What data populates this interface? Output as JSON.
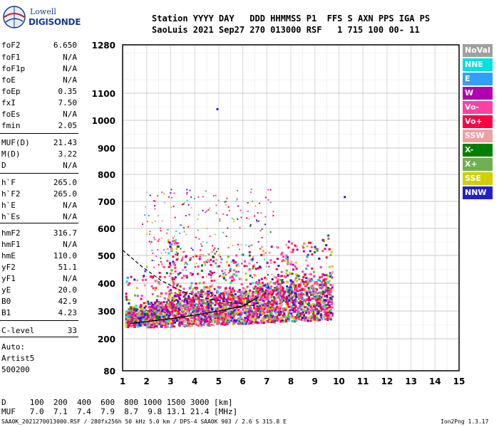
{
  "logo": {
    "brand_top": "Lowell",
    "brand_bottom": "DIGISONDE"
  },
  "header": {
    "labels": "Station YYYY DAY   DDD HHMMSS P1  FFS S AXN PPS IGA PS",
    "values": "SaoLuis 2021 Sep27 270 013000 RSF   1 715 100 00- 11"
  },
  "params": [
    {
      "name": "foF2",
      "value": "6.650"
    },
    {
      "name": "foF1",
      "value": "N/A"
    },
    {
      "name": "foF1p",
      "value": "N/A"
    },
    {
      "name": "foE",
      "value": "N/A"
    },
    {
      "name": "foEp",
      "value": "0.35"
    },
    {
      "name": "fxI",
      "value": "7.50"
    },
    {
      "name": "foEs",
      "value": "N/A"
    },
    {
      "name": "fmin",
      "value": "2.05"
    },
    {
      "name": "MUF(D)",
      "value": "21.43"
    },
    {
      "name": "M(D)",
      "value": "3.22"
    },
    {
      "name": "D",
      "value": "N/A"
    },
    {
      "name": "h`F",
      "value": "265.0"
    },
    {
      "name": "h`F2",
      "value": "265.0"
    },
    {
      "name": "h`E",
      "value": "N/A"
    },
    {
      "name": "h`Es",
      "value": "N/A"
    },
    {
      "name": "hmF2",
      "value": "316.7"
    },
    {
      "name": "hmF1",
      "value": "N/A"
    },
    {
      "name": "hmE",
      "value": "110.0"
    },
    {
      "name": "yF2",
      "value": "51.1"
    },
    {
      "name": "yF1",
      "value": "N/A"
    },
    {
      "name": "yE",
      "value": "20.0"
    },
    {
      "name": "B0",
      "value": "42.9"
    },
    {
      "name": "B1",
      "value": "4.23"
    },
    {
      "name": "C-level",
      "value": "33"
    }
  ],
  "autoscaler": {
    "line1": "Auto:",
    "line2": "Artist5",
    "line3": "500200"
  },
  "legend": [
    {
      "label": "NoVal",
      "color": "#a0a0a0"
    },
    {
      "label": "NNE",
      "color": "#00e0e0"
    },
    {
      "label": "E",
      "color": "#30a0ff"
    },
    {
      "label": "W",
      "color": "#b000b0"
    },
    {
      "label": "Vo-",
      "color": "#ff40a0"
    },
    {
      "label": "Vo+",
      "color": "#ff0040"
    },
    {
      "label": "SSW",
      "color": "#f0a0a0"
    },
    {
      "label": "X-",
      "color": "#008000"
    },
    {
      "label": "X+",
      "color": "#70b050"
    },
    {
      "label": "SSE",
      "color": "#d0d000"
    },
    {
      "label": "NNW",
      "color": "#2020d0"
    }
  ],
  "footer": {
    "d_row": "D     100  200  400  600  800 1000 1500 3000 [km]",
    "muf_row": "MUF   7.0  7.1  7.4  7.9  8.7  9.8 13.1 21.4 [MHz]",
    "file_info": "SAA0K_2021270013000.RSF / 280fx256h 50 kHz 5.0 km / DPS-4 SAA0K 903 / 2.6 S 315.8 E",
    "version": "Ion2Png 1.3.17"
  },
  "chart_data": {
    "type": "scatter",
    "title": "",
    "xlabel": "",
    "ylabel": "",
    "xlim": [
      1,
      15
    ],
    "ylim": [
      80,
      1280
    ],
    "x_ticks": [
      "1",
      "2",
      "3",
      "4",
      "5",
      "6",
      "7",
      "8",
      "9",
      "10",
      "11",
      "12",
      "13",
      "14",
      "15"
    ],
    "y_ticks": [
      "80",
      "200",
      "300",
      "400",
      "500",
      "600",
      "700",
      "800",
      "900",
      "1000",
      "1100",
      "1280"
    ],
    "scale_note": "virtual height axis with non-uniform spacing (denser near 80-200 km)",
    "grid": true,
    "legend_position": "right",
    "series": [
      {
        "kind": "echo-cluster",
        "description_points": [
          {
            "x": 1.5,
            "y": 260
          },
          {
            "x": 2.0,
            "y": 270
          },
          {
            "x": 2.5,
            "y": 280
          },
          {
            "x": 3.0,
            "y": 300
          },
          {
            "x": 3.5,
            "y": 320
          },
          {
            "x": 4.0,
            "y": 330
          },
          {
            "x": 4.5,
            "y": 340
          },
          {
            "x": 5.0,
            "y": 330
          },
          {
            "x": 5.5,
            "y": 320
          },
          {
            "x": 6.0,
            "y": 330
          },
          {
            "x": 6.5,
            "y": 350
          },
          {
            "x": 7.0,
            "y": 360
          },
          {
            "x": 7.5,
            "y": 370
          },
          {
            "x": 8.0,
            "y": 380
          },
          {
            "x": 8.5,
            "y": 380
          },
          {
            "x": 9.0,
            "y": 370
          },
          {
            "x": 9.5,
            "y": 400
          }
        ]
      },
      {
        "kind": "outlier",
        "points": [
          {
            "x": 4.9,
            "y": 1045
          },
          {
            "x": 10.2,
            "y": 720
          }
        ]
      }
    ],
    "trace_curve": [
      {
        "x": 1.3,
        "y": 255
      },
      {
        "x": 2.0,
        "y": 262
      },
      {
        "x": 3.0,
        "y": 272
      },
      {
        "x": 4.0,
        "y": 285
      },
      {
        "x": 5.0,
        "y": 300
      },
      {
        "x": 6.0,
        "y": 318
      },
      {
        "x": 6.65,
        "y": 350
      }
    ],
    "profile_curve": [
      {
        "x": 1.0,
        "y": 520
      },
      {
        "x": 1.8,
        "y": 460
      },
      {
        "x": 2.6,
        "y": 410
      },
      {
        "x": 3.5,
        "y": 370
      },
      {
        "x": 4.5,
        "y": 345
      },
      {
        "x": 5.5,
        "y": 330
      },
      {
        "x": 6.65,
        "y": 317
      }
    ]
  }
}
